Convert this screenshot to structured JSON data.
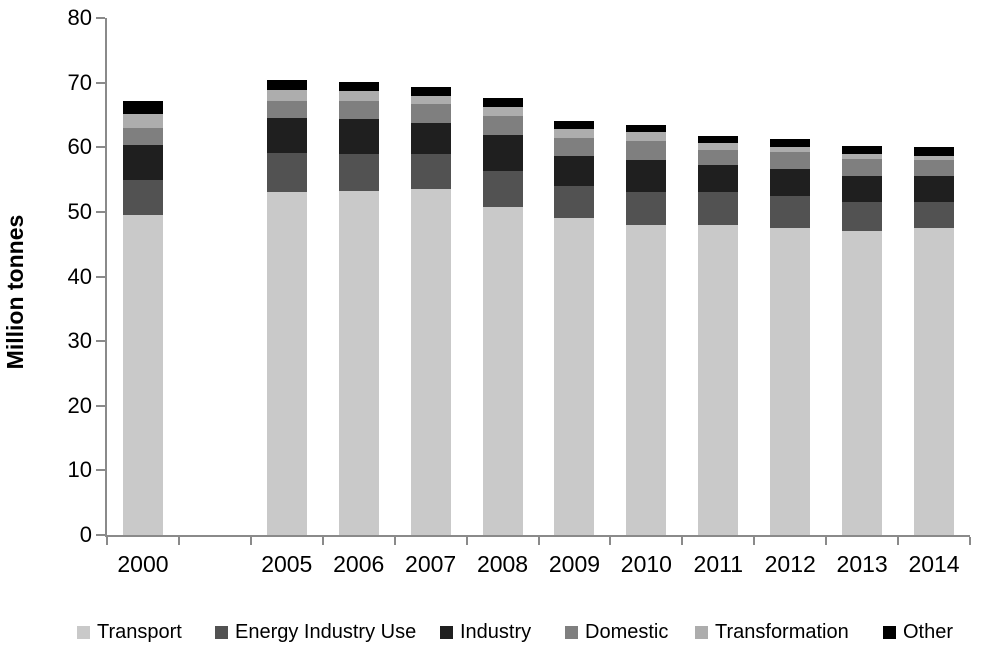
{
  "chart_data": {
    "type": "bar",
    "variant": "stacked",
    "title": "",
    "xlabel": "",
    "ylabel": "Million tonnes",
    "ylim": [
      0,
      80
    ],
    "y_ticks": [
      0,
      10,
      20,
      30,
      40,
      50,
      60,
      70,
      80
    ],
    "grid": false,
    "legend_position": "bottom",
    "axis_color": "#8a8a8a",
    "text_color": "#000000",
    "background_color": "#ffffff",
    "categories": [
      "2000",
      "",
      "2005",
      "2006",
      "2007",
      "2008",
      "2009",
      "2010",
      "2011",
      "2012",
      "2013",
      "2014"
    ],
    "series": [
      {
        "name": "Transport",
        "color": "#c9c9c9",
        "values": [
          49.5,
          0,
          53.0,
          53.3,
          53.5,
          50.8,
          49.0,
          48.0,
          48.0,
          47.5,
          47.0,
          47.5
        ]
      },
      {
        "name": "Energy Industry Use",
        "color": "#525252",
        "values": [
          5.4,
          0,
          6.1,
          5.7,
          5.4,
          5.5,
          5.0,
          5.1,
          5.0,
          5.0,
          4.5,
          4.0
        ]
      },
      {
        "name": "Industry",
        "color": "#1f1f1f",
        "values": [
          5.5,
          0,
          5.4,
          5.4,
          4.9,
          5.6,
          4.7,
          5.0,
          4.3,
          4.1,
          4.1,
          4.1
        ]
      },
      {
        "name": "Domestic",
        "color": "#7f7f7f",
        "values": [
          2.6,
          0,
          2.7,
          2.7,
          2.9,
          3.0,
          2.7,
          2.9,
          2.3,
          2.6,
          2.6,
          2.4
        ]
      },
      {
        "name": "Transformation",
        "color": "#adadad",
        "values": [
          2.1,
          0,
          1.6,
          1.6,
          1.3,
          1.4,
          1.5,
          1.3,
          1.1,
          0.8,
          0.7,
          0.6
        ]
      },
      {
        "name": "Other",
        "color": "#000000",
        "values": [
          2.1,
          0,
          1.6,
          1.4,
          1.4,
          1.3,
          1.2,
          1.2,
          1.1,
          1.2,
          1.3,
          1.4
        ]
      }
    ],
    "totals": [
      67.2,
      0,
      70.4,
      70.1,
      69.4,
      67.6,
      64.1,
      63.5,
      61.8,
      61.2,
      60.2,
      60.0
    ]
  },
  "legend": {
    "items": [
      "Transport",
      "Energy Industry Use",
      "Industry",
      "Domestic",
      "Transformation",
      "Other"
    ]
  }
}
